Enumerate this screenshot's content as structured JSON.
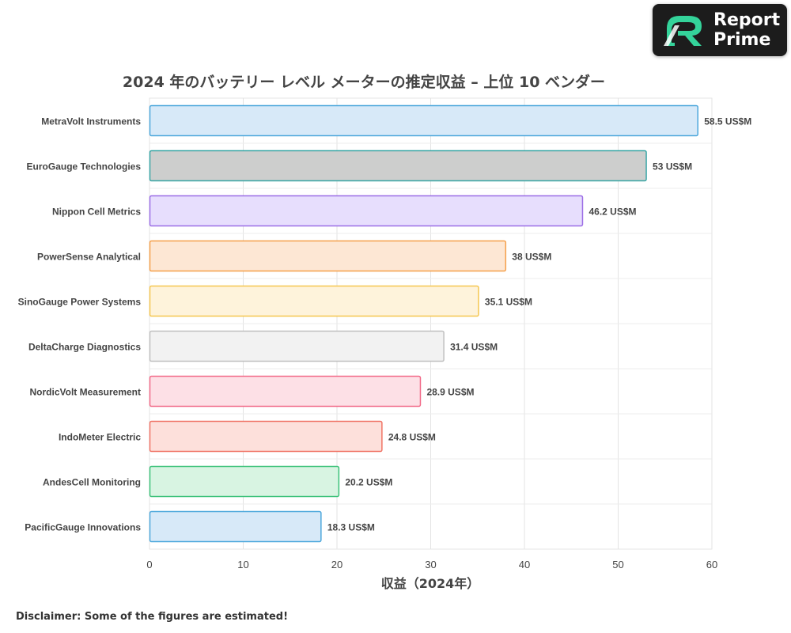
{
  "brand": {
    "line1": "Report",
    "line2": "Prime"
  },
  "disclaimer": "Disclaimer: Some of the figures are estimated!",
  "chart_data": {
    "type": "bar",
    "orientation": "horizontal",
    "title": "2024 年のバッテリー レベル メーターの推定収益 – 上位 10 ベンダー",
    "xlabel": "収益（2024年）",
    "ylabel": "",
    "xlim": [
      0,
      60
    ],
    "xticks": [
      0,
      10,
      20,
      30,
      40,
      50,
      60
    ],
    "grid": true,
    "value_suffix": " US$M",
    "categories": [
      "MetraVolt Instruments",
      "EuroGauge Technologies",
      "Nippon Cell Metrics",
      "PowerSense Analytical",
      "SinoGauge Power Systems",
      "DeltaCharge Diagnostics",
      "NordicVolt Measurement",
      "IndoMeter Electric",
      "AndesCell Monitoring",
      "PacificGauge Innovations"
    ],
    "values": [
      58.5,
      53,
      46.2,
      38,
      35.1,
      31.4,
      28.9,
      24.8,
      20.2,
      18.3
    ],
    "fill_colors": [
      "#d7e9f8",
      "#cdcecd",
      "#e7defd",
      "#fde7d4",
      "#fef3db",
      "#f2f2f2",
      "#fde0e6",
      "#fde0db",
      "#d8f4e2",
      "#d7e9f8"
    ],
    "border_colors": [
      "#4ea8dc",
      "#3aa7a6",
      "#9c6ee6",
      "#f5a04b",
      "#f5c750",
      "#c0c0c0",
      "#f26b89",
      "#f07466",
      "#3dc27a",
      "#4ea8dc"
    ]
  }
}
